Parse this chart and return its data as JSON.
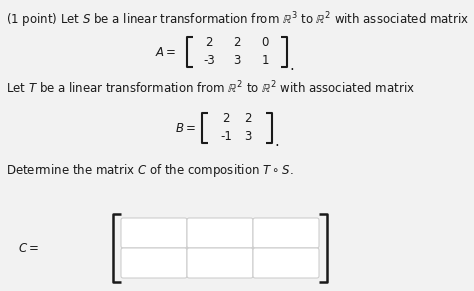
{
  "background_color": "#f2f2f2",
  "title_line1": "(1 point) Let $S$ be a linear transformation from $\\mathbb{R}^3$ to $\\mathbb{R}^2$ with associated matrix",
  "A_matrix": [
    [
      2,
      2,
      0
    ],
    [
      -3,
      3,
      1
    ]
  ],
  "line2": "Let $T$ be a linear transformation from $\\mathbb{R}^2$ to $\\mathbb{R}^2$ with associated matrix",
  "B_matrix": [
    [
      2,
      2
    ],
    [
      -1,
      3
    ]
  ],
  "line3": "Determine the matrix $C$ of the composition $T \\circ S$.",
  "C_rows": 2,
  "C_cols": 3,
  "text_color": "#1a1a1a",
  "box_color": "#ffffff",
  "box_edge_color": "#c8c8c8",
  "font_size": 8.5
}
